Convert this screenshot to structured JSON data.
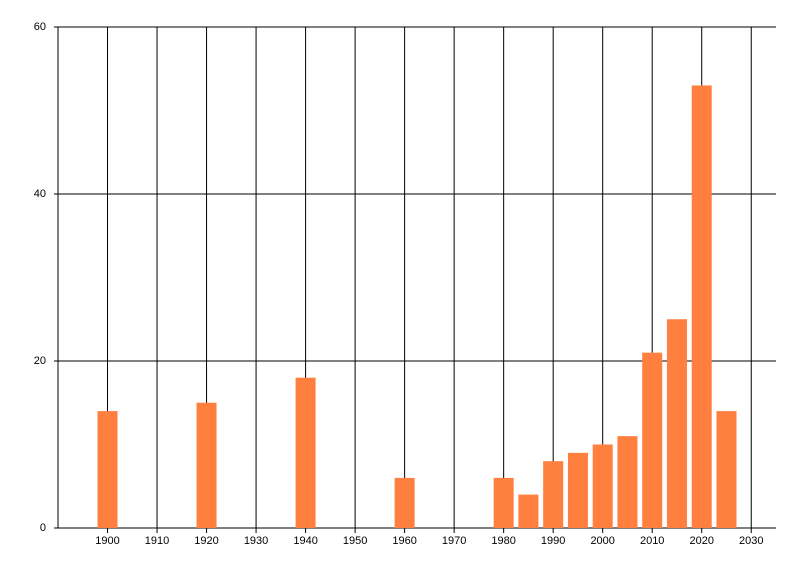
{
  "chart_data": {
    "type": "bar",
    "x": [
      1900,
      1920,
      1940,
      1960,
      1980,
      1985,
      1990,
      1995,
      2000,
      2005,
      2010,
      2015,
      2020,
      2025
    ],
    "values": [
      14,
      15,
      18,
      6,
      6,
      4,
      8,
      9,
      10,
      11,
      21,
      25,
      53,
      14
    ],
    "color": "#ff7f3f",
    "xlim": [
      1890,
      2035
    ],
    "xticks": [
      1900,
      1910,
      1920,
      1930,
      1940,
      1950,
      1960,
      1970,
      1980,
      1990,
      2000,
      2010,
      2020,
      2030
    ],
    "ylim": [
      0,
      60
    ],
    "yticks": [
      0,
      20,
      40,
      60
    ],
    "grid": true
  }
}
